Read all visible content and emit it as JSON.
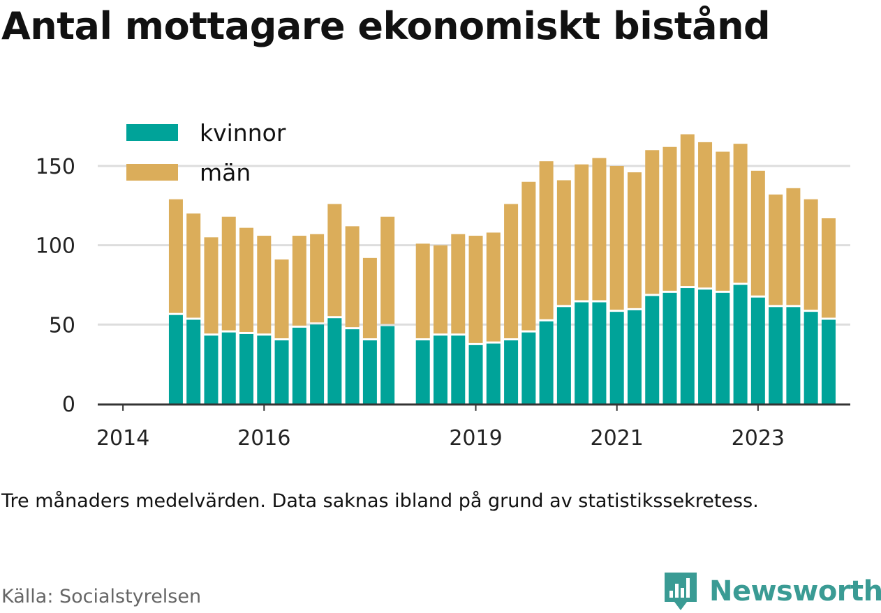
{
  "title": "Antal mottagare ekonomiskt bistånd",
  "note": "Tre månaders medelvärden. Data saknas ibland på grund av statistikssekretess.",
  "source": "Källa: Socialstyrelsen",
  "brand": {
    "name": "Newsworthy",
    "icon": "bar-chart-badge-icon",
    "color": "#3a9b94"
  },
  "chart_data": {
    "type": "bar",
    "stacked": true,
    "colors": {
      "kvinnor": "#00a399",
      "män": "#dbad5a",
      "grid": "#dddddd",
      "axis": "#333333"
    },
    "legend_position": "top-left",
    "grid": true,
    "ylim": [
      0,
      170
    ],
    "y_ticks": [
      0,
      50,
      100,
      150
    ],
    "x_ticks": [
      {
        "label": "2014",
        "slot": 0
      },
      {
        "label": "2016",
        "slot": 8
      },
      {
        "label": "2019",
        "slot": 20
      },
      {
        "label": "2021",
        "slot": 28
      },
      {
        "label": "2023",
        "slot": 36
      }
    ],
    "slots_total": 43,
    "bars": [
      {
        "slot": 3,
        "kvinnor": 56,
        "män": 73
      },
      {
        "slot": 4,
        "kvinnor": 53,
        "män": 67
      },
      {
        "slot": 5,
        "kvinnor": 43,
        "män": 62
      },
      {
        "slot": 6,
        "kvinnor": 45,
        "män": 73
      },
      {
        "slot": 7,
        "kvinnor": 44,
        "män": 67
      },
      {
        "slot": 8,
        "kvinnor": 43,
        "män": 63
      },
      {
        "slot": 9,
        "kvinnor": 40,
        "män": 51
      },
      {
        "slot": 10,
        "kvinnor": 48,
        "män": 58
      },
      {
        "slot": 11,
        "kvinnor": 50,
        "män": 57
      },
      {
        "slot": 12,
        "kvinnor": 54,
        "män": 72
      },
      {
        "slot": 13,
        "kvinnor": 47,
        "män": 65
      },
      {
        "slot": 14,
        "kvinnor": 40,
        "män": 52
      },
      {
        "slot": 15,
        "kvinnor": 49,
        "män": 69
      },
      {
        "slot": 17,
        "kvinnor": 40,
        "män": 61
      },
      {
        "slot": 18,
        "kvinnor": 43,
        "män": 57
      },
      {
        "slot": 19,
        "kvinnor": 43,
        "män": 64
      },
      {
        "slot": 20,
        "kvinnor": 37,
        "män": 69
      },
      {
        "slot": 21,
        "kvinnor": 38,
        "män": 70
      },
      {
        "slot": 22,
        "kvinnor": 40,
        "män": 86
      },
      {
        "slot": 23,
        "kvinnor": 45,
        "män": 95
      },
      {
        "slot": 24,
        "kvinnor": 52,
        "män": 101
      },
      {
        "slot": 25,
        "kvinnor": 61,
        "män": 80
      },
      {
        "slot": 26,
        "kvinnor": 64,
        "män": 87
      },
      {
        "slot": 27,
        "kvinnor": 64,
        "män": 91
      },
      {
        "slot": 28,
        "kvinnor": 58,
        "män": 92
      },
      {
        "slot": 29,
        "kvinnor": 59,
        "män": 87
      },
      {
        "slot": 30,
        "kvinnor": 68,
        "män": 92
      },
      {
        "slot": 31,
        "kvinnor": 70,
        "män": 92
      },
      {
        "slot": 32,
        "kvinnor": 73,
        "män": 97
      },
      {
        "slot": 33,
        "kvinnor": 72,
        "män": 93
      },
      {
        "slot": 34,
        "kvinnor": 70,
        "män": 89
      },
      {
        "slot": 35,
        "kvinnor": 75,
        "män": 89
      },
      {
        "slot": 36,
        "kvinnor": 67,
        "män": 80
      },
      {
        "slot": 37,
        "kvinnor": 61,
        "män": 71
      },
      {
        "slot": 38,
        "kvinnor": 61,
        "män": 75
      },
      {
        "slot": 39,
        "kvinnor": 58,
        "män": 71
      },
      {
        "slot": 40,
        "kvinnor": 53,
        "män": 64
      }
    ],
    "series": [
      {
        "name": "kvinnor"
      },
      {
        "name": "män"
      }
    ]
  }
}
